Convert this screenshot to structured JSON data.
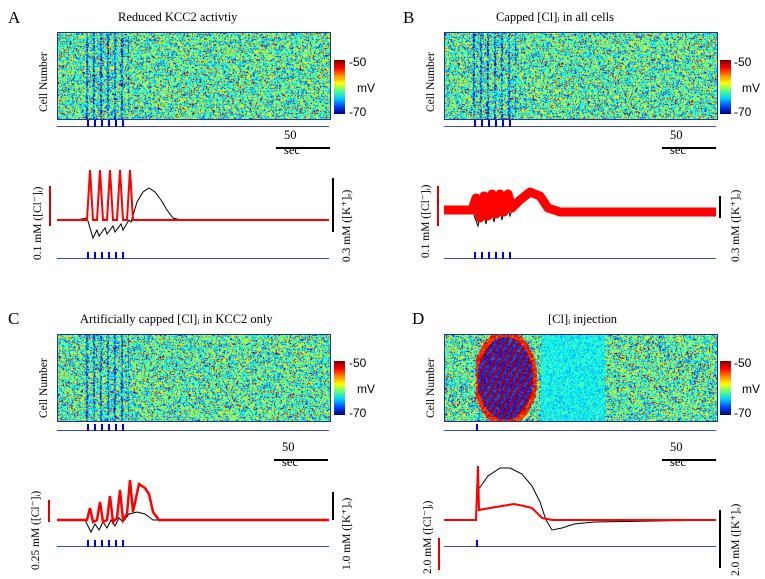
{
  "panels": [
    {
      "label": "A",
      "title": "Reduced KCC2 activtiy",
      "raster_ylabel": "Cell Number",
      "colorbar": {
        "top": "-50",
        "mid": "mV",
        "bottom": "-70"
      },
      "scale_bar": "50 sec",
      "trace_left_label": "0.1 mM ([Cl⁻]ᵢ)",
      "trace_right_label": "0.3 mM ([K⁺]ₒ)",
      "stim_pulses": 6
    },
    {
      "label": "B",
      "title": "Capped [Cl]ᵢ in all cells",
      "raster_ylabel": "Cell Number",
      "colorbar": {
        "top": "-50",
        "mid": "mV",
        "bottom": "-70"
      },
      "scale_bar": "50 sec",
      "trace_left_label": "0.1 mM ([Cl⁻]ᵢ)",
      "trace_right_label": "0.3 mM ([K⁺]ₒ)",
      "stim_pulses": 6
    },
    {
      "label": "C",
      "title": "Artificially capped [Cl]ᵢ in KCC2 only",
      "raster_ylabel": "Cell Number",
      "colorbar": {
        "top": "-50",
        "mid": "mV",
        "bottom": "-70"
      },
      "scale_bar": "50 sec",
      "trace_left_label": "0.25 mM ([Cl⁻]ᵢ)",
      "trace_right_label": "1.0 mM ([K⁺]ₒ)",
      "stim_pulses": 6
    },
    {
      "label": "D",
      "title": "[Cl]ᵢ injection",
      "raster_ylabel": "Cell Number",
      "colorbar": {
        "top": "-50",
        "mid": "mV",
        "bottom": "-70"
      },
      "scale_bar": "50 sec",
      "trace_left_label": "2.0 mM ([Cl⁻]ᵢ)",
      "trace_right_label": "2.0 mM ([K⁺]ₒ)",
      "stim_pulses": 1
    }
  ],
  "colors": {
    "cl_trace": "#ff0000",
    "k_trace": "#000000",
    "stim": "#0000ee",
    "axis": "#3b4cc0"
  }
}
